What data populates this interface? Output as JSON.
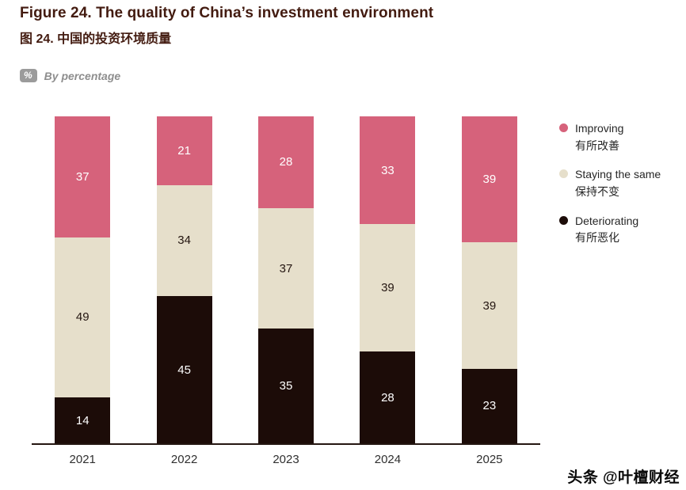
{
  "header": {
    "title_en": "Figure 24. The quality of China’s investment environment",
    "title_zh": "图 24. 中国的投资环境质量",
    "unit_badge": "%",
    "unit_label": "By percentage"
  },
  "chart_data": {
    "type": "bar",
    "stacked": true,
    "title": "Figure 24. The quality of China’s investment environment",
    "xlabel": "",
    "ylabel": "By percentage",
    "ylim": [
      0,
      100
    ],
    "grid": false,
    "legend_position": "right",
    "categories": [
      "2021",
      "2022",
      "2023",
      "2024",
      "2025"
    ],
    "series": [
      {
        "name": "Improving",
        "name_zh": "有所改善",
        "color": "#d6627b",
        "label_color": "#ffffff",
        "values": [
          37,
          21,
          28,
          33,
          39
        ]
      },
      {
        "name": "Staying the same",
        "name_zh": "保持不变",
        "color": "#e6dfcb",
        "label_color": "#241611",
        "values": [
          49,
          34,
          37,
          39,
          39
        ]
      },
      {
        "name": "Deteriorating",
        "name_zh": "有所恶化",
        "color": "#1c0c08",
        "label_color": "#ffffff",
        "values": [
          14,
          45,
          35,
          28,
          23
        ]
      }
    ]
  },
  "watermark": "头条 @叶檀财经"
}
